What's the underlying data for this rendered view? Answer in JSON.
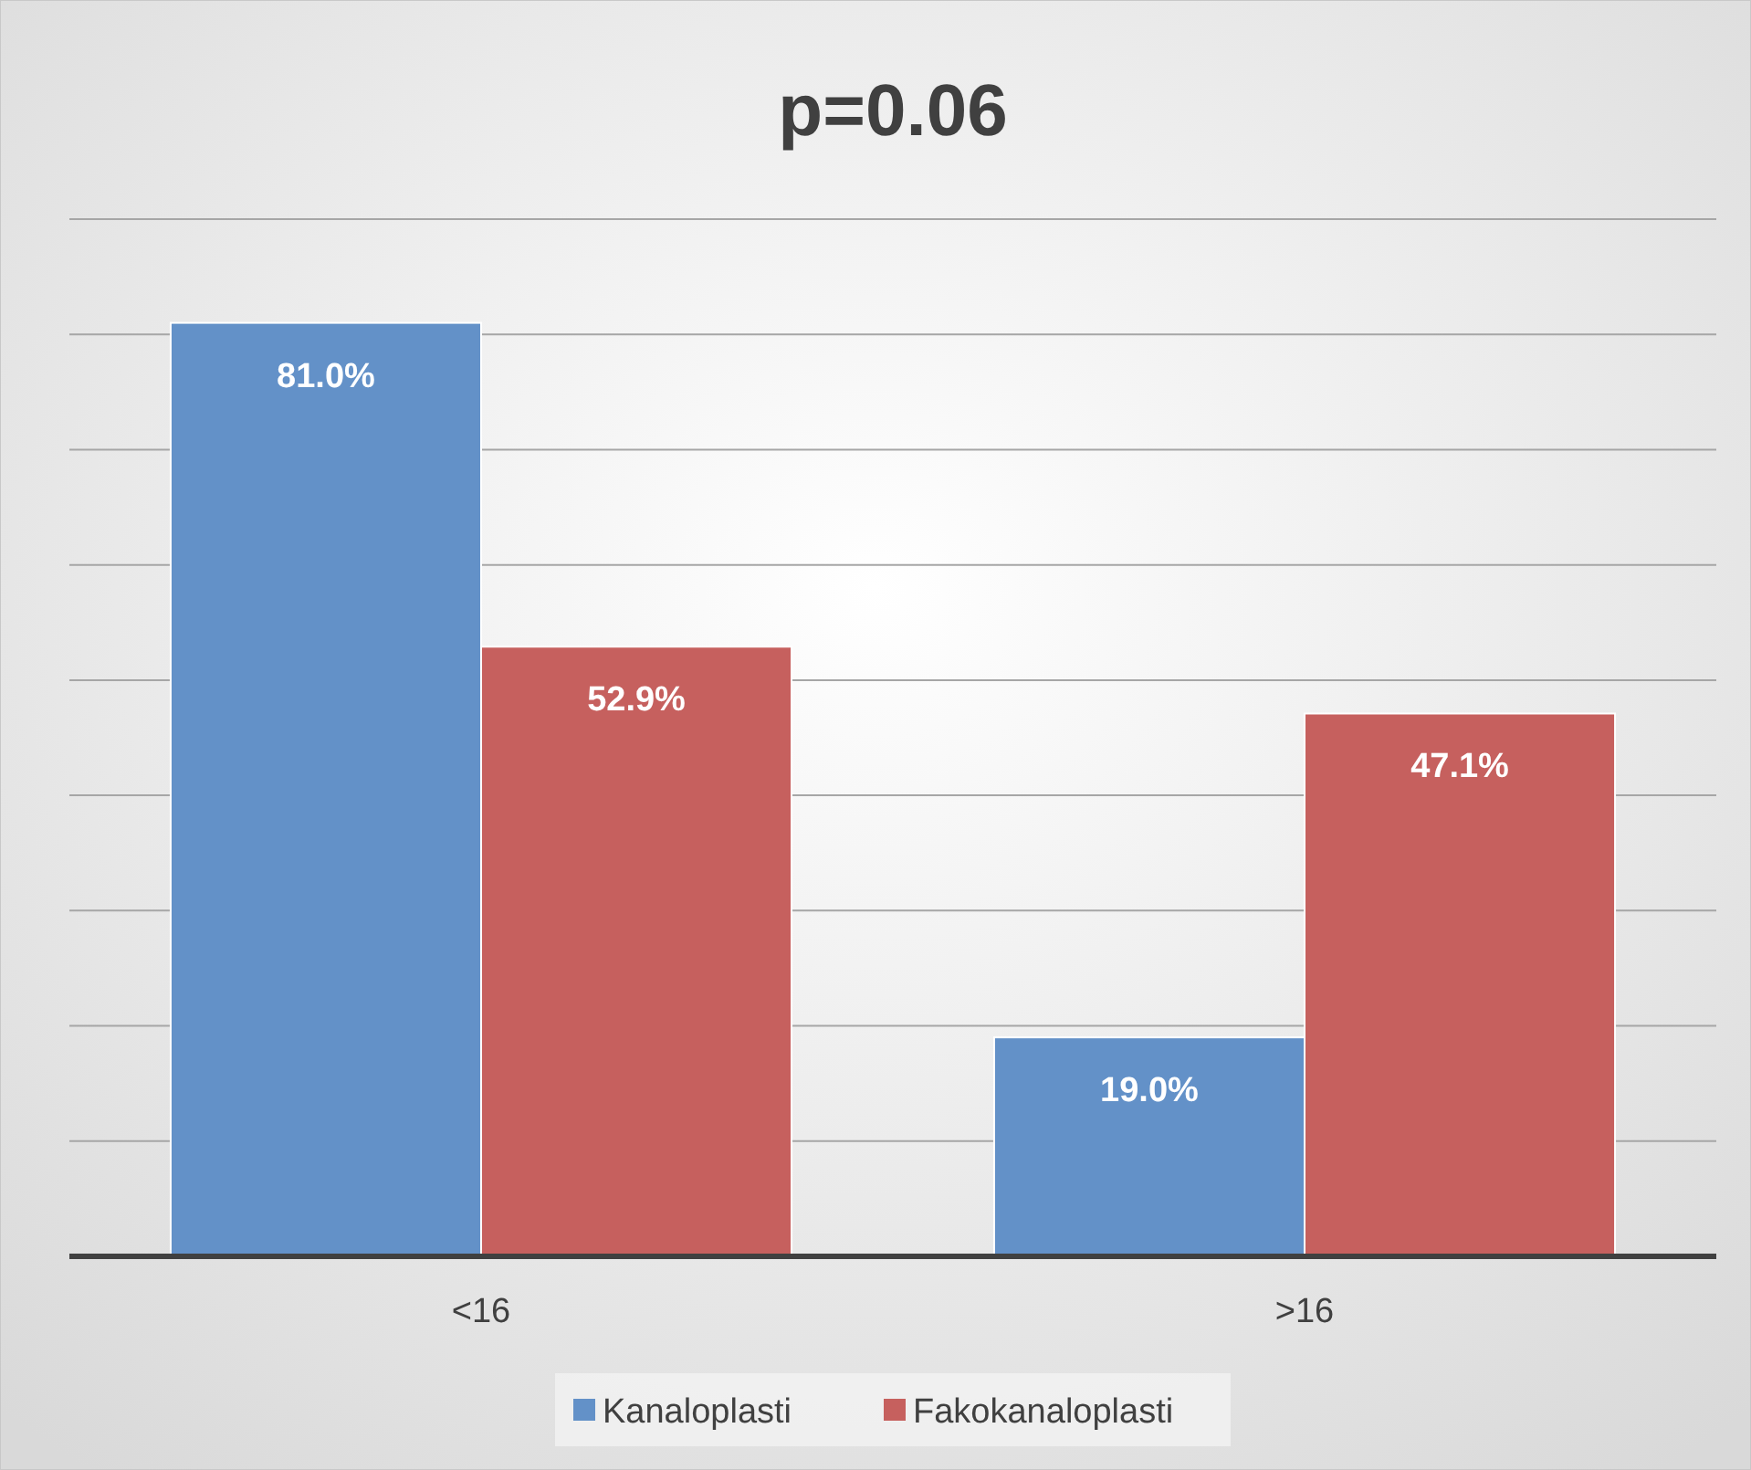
{
  "chart_data": {
    "type": "bar",
    "title": "p=0.06",
    "categories": [
      "<16",
      ">16"
    ],
    "series": [
      {
        "name": "Kanaloplasti",
        "color": "#6391c8",
        "values": [
          81.0,
          19.0
        ],
        "value_labels": [
          "81.0%",
          "19.0%"
        ]
      },
      {
        "name": "Fakokanaloplasti",
        "color": "#c6605e",
        "values": [
          52.9,
          47.1
        ],
        "value_labels": [
          "52.9%",
          "47.1%"
        ]
      }
    ],
    "ylim": [
      0,
      90
    ],
    "yticks": [
      {
        "value": 0,
        "label": null
      },
      {
        "value": 10,
        "label": null
      },
      {
        "value": 20,
        "label": null
      },
      {
        "value": 30,
        "label": null
      },
      {
        "value": 40,
        "label": null
      },
      {
        "value": 50,
        "label": null
      },
      {
        "value": 60,
        "label": null
      },
      {
        "value": 70,
        "label": null
      },
      {
        "value": 80,
        "label": null
      },
      {
        "value": 90,
        "label": null
      }
    ],
    "grid": "y",
    "legend": "bottom",
    "tick_labels": "x"
  }
}
